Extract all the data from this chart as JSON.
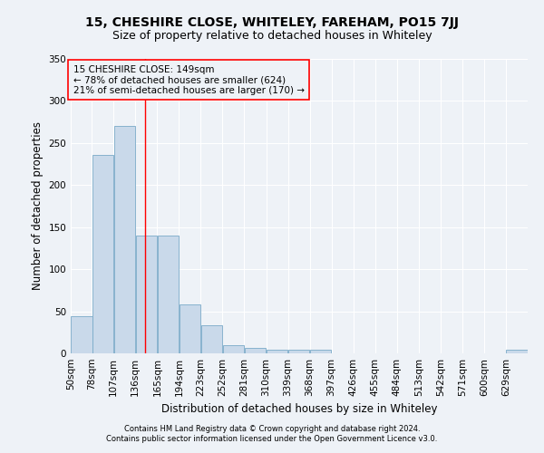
{
  "title": "15, CHESHIRE CLOSE, WHITELEY, FAREHAM, PO15 7JJ",
  "subtitle": "Size of property relative to detached houses in Whiteley",
  "xlabel": "Distribution of detached houses by size in Whiteley",
  "ylabel": "Number of detached properties",
  "footnote1": "Contains HM Land Registry data © Crown copyright and database right 2024.",
  "footnote2": "Contains public sector information licensed under the Open Government Licence v3.0.",
  "annotation_line1": "15 CHESHIRE CLOSE: 149sqm",
  "annotation_line2": "← 78% of detached houses are smaller (624)",
  "annotation_line3": "21% of semi-detached houses are larger (170) →",
  "bar_color": "#c9d9ea",
  "bar_edge_color": "#7aaac8",
  "red_line_x": 149,
  "categories": [
    "50sqm",
    "78sqm",
    "107sqm",
    "136sqm",
    "165sqm",
    "194sqm",
    "223sqm",
    "252sqm",
    "281sqm",
    "310sqm",
    "339sqm",
    "368sqm",
    "397sqm",
    "426sqm",
    "455sqm",
    "484sqm",
    "513sqm",
    "542sqm",
    "571sqm",
    "600sqm",
    "629sqm"
  ],
  "bin_starts": [
    50,
    78,
    107,
    136,
    165,
    194,
    223,
    252,
    281,
    310,
    339,
    368,
    397,
    426,
    455,
    484,
    513,
    542,
    571,
    600,
    629
  ],
  "bin_width": 29,
  "values": [
    44,
    236,
    270,
    140,
    140,
    58,
    33,
    10,
    7,
    4,
    4,
    4,
    0,
    0,
    0,
    0,
    0,
    0,
    0,
    0,
    4
  ],
  "ylim": [
    0,
    350
  ],
  "yticks": [
    0,
    50,
    100,
    150,
    200,
    250,
    300,
    350
  ],
  "background_color": "#eef2f7",
  "grid_color": "#ffffff",
  "title_fontsize": 10,
  "subtitle_fontsize": 9,
  "axis_label_fontsize": 8.5,
  "tick_fontsize": 7.5,
  "footnote_fontsize": 6,
  "annotation_fontsize": 7.5
}
